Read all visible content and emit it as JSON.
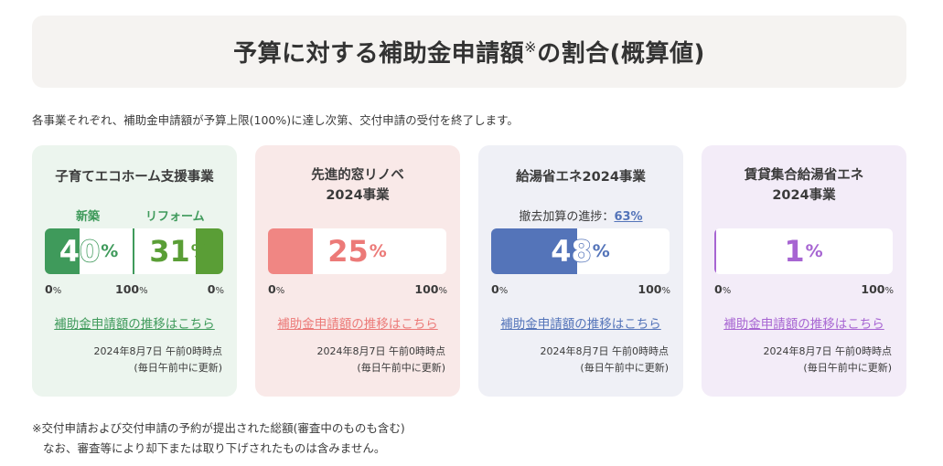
{
  "title": {
    "main": "予算に対する補助金申請額",
    "mark": "※",
    "tail": "の割合(概算値)"
  },
  "intro": "各事業それぞれ、補助金申請額が予算上限(100%)に達し次第、交付申請の受付を終了します。",
  "cards": [
    {
      "title_line1": "子育てエコホーム支援事業",
      "title_line2": "",
      "label_new": "新築",
      "label_reform": "リフォーム",
      "value_new": "40",
      "value_reform": "31",
      "pct": "%",
      "axis_left": "0",
      "axis_mid": "100",
      "axis_right": "0",
      "link": "補助金申請額の推移はこちら",
      "date": "2024年8月7日 午前0時時点",
      "update": "(毎日午前中に更新)",
      "color": "#3f9a5b",
      "fill_new_fraction": 0.4,
      "fill_reform_fraction": 0.31
    },
    {
      "title_line1": "先進的窓リノベ",
      "title_line2": "2024事業",
      "value": "25",
      "pct": "%",
      "axis_left": "0",
      "axis_right": "100",
      "link": "補助金申請額の推移はこちら",
      "date": "2024年8月7日 午前0時時点",
      "update": "(毎日午前中に更新)",
      "color": "#ec7a78",
      "fill_fraction": 0.25
    },
    {
      "title_line1": "給湯省エネ2024事業",
      "title_line2": "",
      "progress_label": "撤去加算の進捗：",
      "progress_value": "63%",
      "value": "48",
      "pct": "%",
      "axis_left": "0",
      "axis_right": "100",
      "link": "補助金申請額の推移はこちら",
      "date": "2024年8月7日 午前0時時点",
      "update": "(毎日午前中に更新)",
      "color": "#5474b9",
      "fill_fraction": 0.48
    },
    {
      "title_line1": "賃貸集合給湯省エネ",
      "title_line2": "2024事業",
      "value": "1",
      "pct": "%",
      "axis_left": "0",
      "axis_right": "100",
      "link": "補助金申請額の推移はこちら",
      "date": "2024年8月7日 午前0時時点",
      "update": "(毎日午前中に更新)",
      "color": "#a765d2",
      "fill_fraction": 0.01
    }
  ],
  "footnote": {
    "line1": "※交付申請および交付申請の予約が提出された総額(審査中のものも含む)",
    "line2": "なお、審査等により却下または取り下げされたものは含みません。"
  }
}
